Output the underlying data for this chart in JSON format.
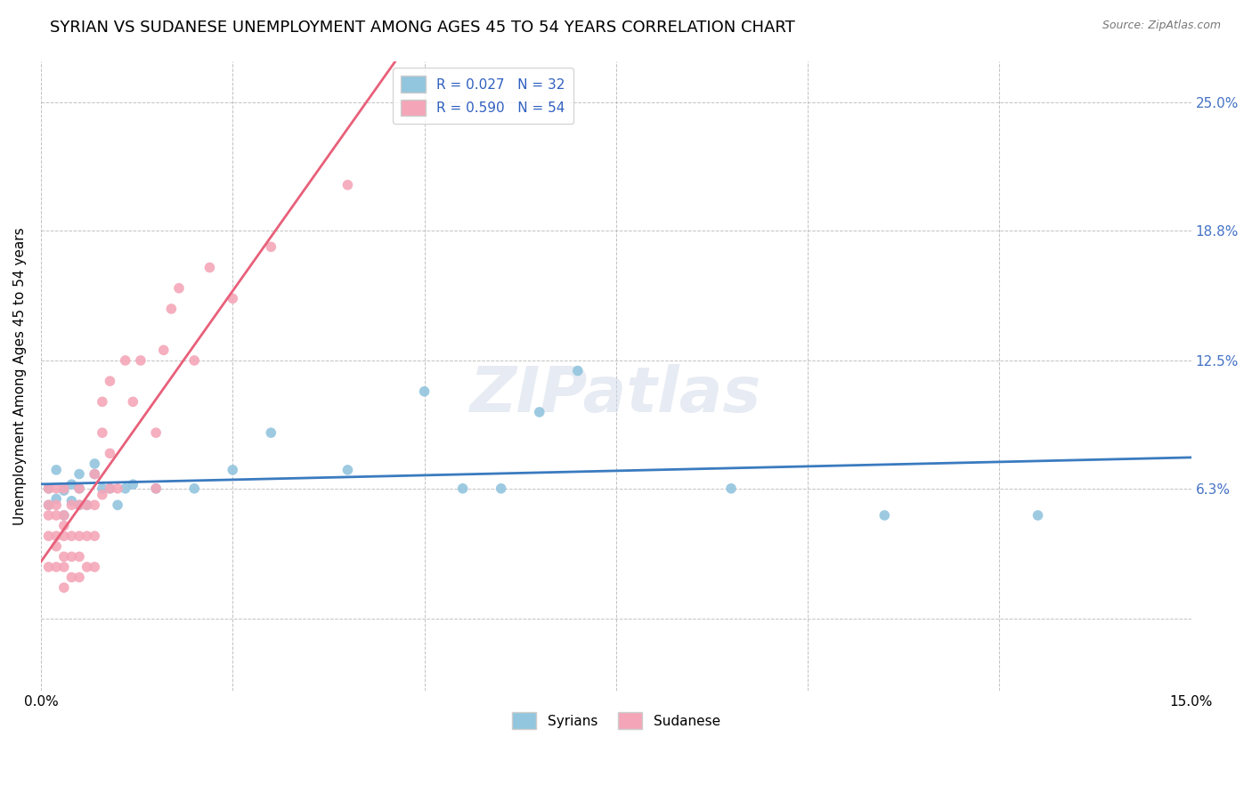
{
  "title": "SYRIAN VS SUDANESE UNEMPLOYMENT AMONG AGES 45 TO 54 YEARS CORRELATION CHART",
  "source": "Source: ZipAtlas.com",
  "ylabel": "Unemployment Among Ages 45 to 54 years",
  "xlim": [
    0.0,
    0.15
  ],
  "ylim": [
    -0.035,
    0.27
  ],
  "yticks_right_vals": [
    0.0,
    0.063,
    0.125,
    0.188,
    0.25
  ],
  "yticks_right_labels": [
    "",
    "6.3%",
    "12.5%",
    "18.8%",
    "25.0%"
  ],
  "xtick_vals": [
    0.0,
    0.025,
    0.05,
    0.075,
    0.1,
    0.125,
    0.15
  ],
  "xtick_labels": [
    "0.0%",
    "",
    "",
    "",
    "",
    "",
    "15.0%"
  ],
  "legend_R_syrian": "R = 0.027",
  "legend_N_syrian": "N = 32",
  "legend_R_sudanese": "R = 0.590",
  "legend_N_sudanese": "N = 54",
  "syrian_color": "#92c5de",
  "sudanese_color": "#f4a6b8",
  "syrian_line_color": "#3a7bbf",
  "sudanese_line_color": "#e8607a",
  "title_fontsize": 13,
  "watermark": "ZIPatlas",
  "syrian_x": [
    0.001,
    0.001,
    0.002,
    0.002,
    0.003,
    0.003,
    0.004,
    0.004,
    0.005,
    0.005,
    0.005,
    0.006,
    0.007,
    0.007,
    0.008,
    0.009,
    0.01,
    0.011,
    0.012,
    0.015,
    0.02,
    0.025,
    0.03,
    0.04,
    0.05,
    0.055,
    0.06,
    0.065,
    0.07,
    0.09,
    0.11,
    0.13
  ],
  "syrian_y": [
    0.055,
    0.063,
    0.058,
    0.072,
    0.05,
    0.062,
    0.057,
    0.065,
    0.055,
    0.063,
    0.07,
    0.055,
    0.07,
    0.075,
    0.063,
    0.063,
    0.055,
    0.063,
    0.065,
    0.063,
    0.063,
    0.072,
    0.09,
    0.072,
    0.11,
    0.063,
    0.063,
    0.1,
    0.12,
    0.063,
    0.05,
    0.05
  ],
  "sudanese_x": [
    0.001,
    0.001,
    0.001,
    0.001,
    0.001,
    0.002,
    0.002,
    0.002,
    0.002,
    0.002,
    0.002,
    0.003,
    0.003,
    0.003,
    0.003,
    0.003,
    0.003,
    0.003,
    0.004,
    0.004,
    0.004,
    0.004,
    0.005,
    0.005,
    0.005,
    0.005,
    0.005,
    0.006,
    0.006,
    0.006,
    0.007,
    0.007,
    0.007,
    0.007,
    0.008,
    0.008,
    0.008,
    0.009,
    0.009,
    0.009,
    0.01,
    0.011,
    0.012,
    0.013,
    0.015,
    0.015,
    0.016,
    0.017,
    0.018,
    0.02,
    0.022,
    0.025,
    0.03,
    0.04
  ],
  "sudanese_y": [
    0.025,
    0.04,
    0.05,
    0.055,
    0.063,
    0.025,
    0.035,
    0.04,
    0.05,
    0.055,
    0.063,
    0.015,
    0.025,
    0.03,
    0.04,
    0.045,
    0.05,
    0.063,
    0.02,
    0.03,
    0.04,
    0.055,
    0.02,
    0.03,
    0.04,
    0.055,
    0.063,
    0.025,
    0.04,
    0.055,
    0.025,
    0.04,
    0.055,
    0.07,
    0.06,
    0.09,
    0.105,
    0.063,
    0.08,
    0.115,
    0.063,
    0.125,
    0.105,
    0.125,
    0.063,
    0.09,
    0.13,
    0.15,
    0.16,
    0.125,
    0.17,
    0.155,
    0.18,
    0.21
  ]
}
